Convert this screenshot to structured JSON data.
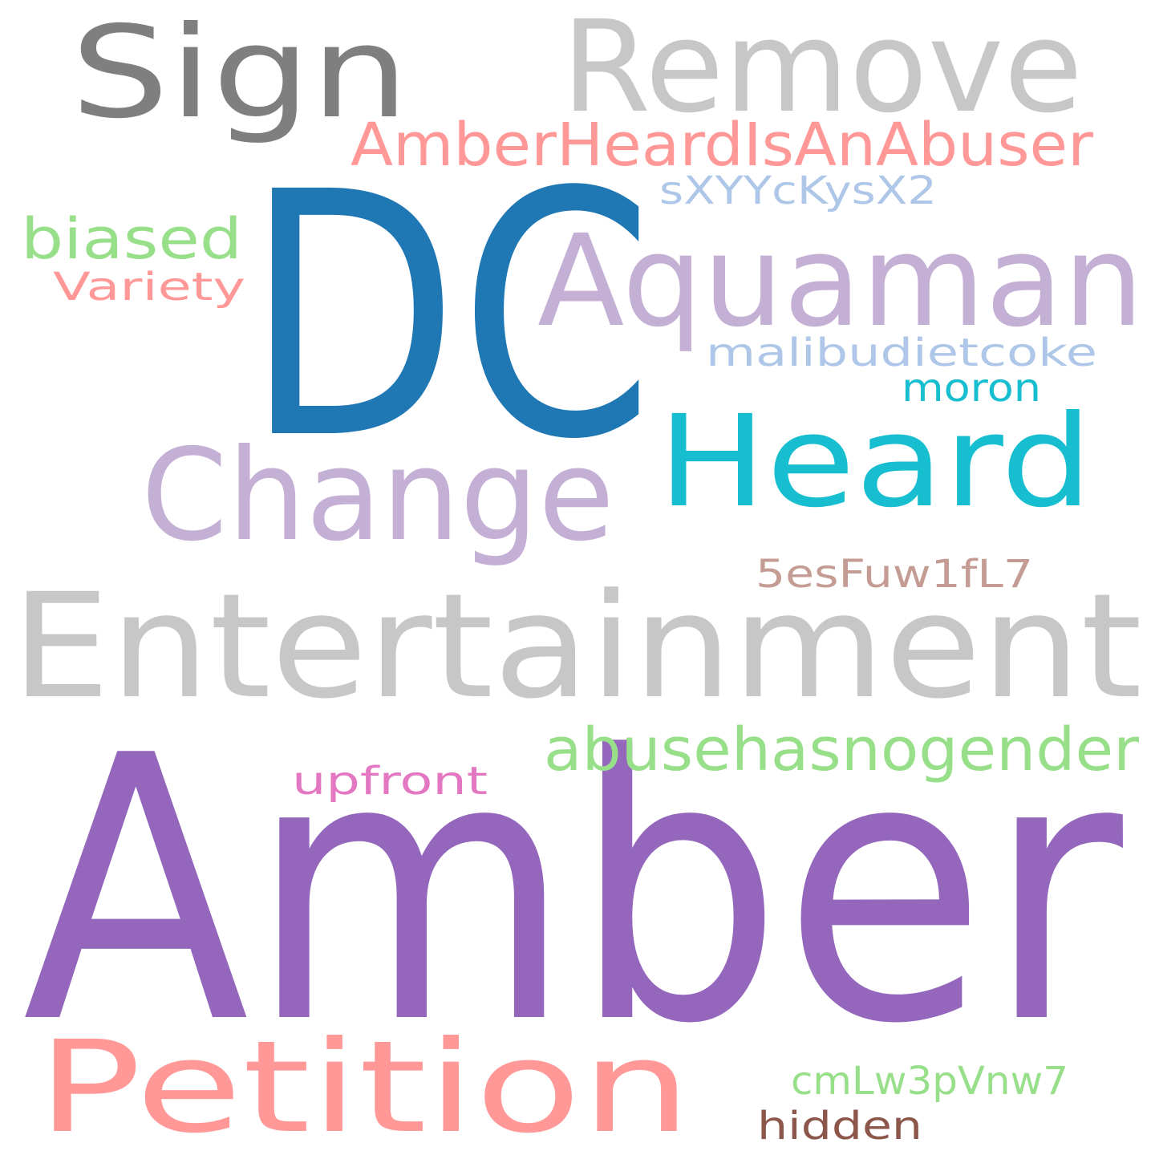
{
  "words": [
    {
      "text": "Amber",
      "color": "#9467bd"
    },
    {
      "text": "DC",
      "color": "#1f77b4"
    },
    {
      "text": "Entertainment",
      "color": "#c7c7c7"
    },
    {
      "text": "Petition",
      "color": "#ff9896"
    },
    {
      "text": "Change",
      "color": "#c5b0d5"
    },
    {
      "text": "Heard",
      "color": "#17becf"
    },
    {
      "text": "Aquaman",
      "color": "#c5b0d5"
    },
    {
      "text": "Remove",
      "color": "#c7c7c7"
    },
    {
      "text": "Sign",
      "color": "#7f7f7f"
    },
    {
      "text": "AmberHeardIsAnAbuser",
      "color": "#ff9896"
    },
    {
      "text": "abusehasnogender",
      "color": "#98df8a"
    },
    {
      "text": "biased",
      "color": "#98df8a"
    },
    {
      "text": "malibudietcoke",
      "color": "#aec7e8"
    },
    {
      "text": "sXYYcKysX2",
      "color": "#aec7e8"
    },
    {
      "text": "Variety",
      "color": "#ff9896"
    },
    {
      "text": "5esFuw1fL7",
      "color": "#c49c94"
    },
    {
      "text": "moron",
      "color": "#17becf"
    },
    {
      "text": "upfront",
      "color": "#e377c2"
    },
    {
      "text": "cmLw3pVnw7",
      "color": "#98df8a"
    },
    {
      "text": "hidden",
      "color": "#8c564b"
    }
  ]
}
